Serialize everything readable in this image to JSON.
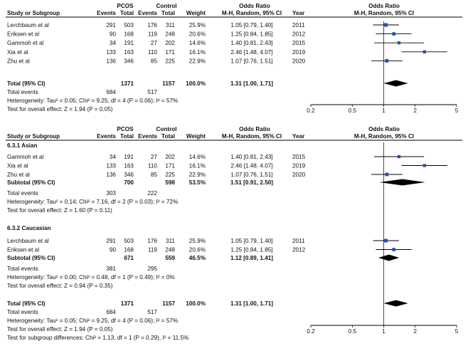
{
  "chart_data": {
    "type": "forest",
    "scale": "log",
    "xlim": [
      0.2,
      5
    ],
    "null_line": 1,
    "ticks": [
      {
        "value": 0.2,
        "label": "0.2"
      },
      {
        "value": 0.5,
        "label": "0.5"
      },
      {
        "value": 1,
        "label": "1"
      },
      {
        "value": 2,
        "label": "2"
      },
      {
        "value": 5,
        "label": "5"
      }
    ],
    "headers": {
      "group_pcos": "PCOS",
      "group_control": "Control",
      "group_or": "Odds Ratio",
      "group_or_plot": "Odds Ratio",
      "study": "Study or Subgroup",
      "events": "Events",
      "total": "Total",
      "events2": "Events",
      "total2": "Total",
      "weight": "Weight",
      "method": "M-H, Random, 95% CI",
      "year": "Year",
      "method_plot": "M-H, Random, 95% CI"
    },
    "panel1": {
      "studies": [
        {
          "name": "Lerchbaum et al",
          "e1": "291",
          "t1": "503",
          "e2": "176",
          "t2": "311",
          "weight": "25.9%",
          "ci": "1.05 [0.79, 1.40]",
          "year": "2011",
          "or": 1.05,
          "lo": 0.79,
          "hi": 1.4,
          "w": 25.9
        },
        {
          "name": "Eriksen et al",
          "e1": "90",
          "t1": "168",
          "e2": "119",
          "t2": "248",
          "weight": "20.6%",
          "ci": "1.25 [0.84, 1.85]",
          "year": "2012",
          "or": 1.25,
          "lo": 0.84,
          "hi": 1.85,
          "w": 20.6
        },
        {
          "name": "Gammoh et al",
          "e1": "34",
          "t1": "191",
          "e2": "27",
          "t2": "202",
          "weight": "14.6%",
          "ci": "1.40 [0.81, 2.43]",
          "year": "2015",
          "or": 1.4,
          "lo": 0.81,
          "hi": 2.43,
          "w": 14.6
        },
        {
          "name": "Xia et al",
          "e1": "133",
          "t1": "163",
          "e2": "110",
          "t2": "171",
          "weight": "16.1%",
          "ci": "2.46 [1.48, 4.07]",
          "year": "2019",
          "or": 2.46,
          "lo": 1.48,
          "hi": 4.07,
          "w": 16.1
        },
        {
          "name": "Zhu et al",
          "e1": "136",
          "t1": "346",
          "e2": "85",
          "t2": "225",
          "weight": "22.9%",
          "ci": "1.07 [0.76, 1.51]",
          "year": "2020",
          "or": 1.07,
          "lo": 0.76,
          "hi": 1.51,
          "w": 22.9
        }
      ],
      "total": {
        "label": "Total (95% CI)",
        "t1": "1371",
        "t2": "1157",
        "weight": "100.0%",
        "ci": "1.31 [1.00, 1.71]",
        "or": 1.31,
        "lo": 1.0,
        "hi": 1.71
      },
      "events": {
        "label": "Total events",
        "e1": "684",
        "e2": "517"
      },
      "heterogeneity": "Heterogeneity: Tau² = 0.05; Chi² = 9.25, df = 4 (P = 0.06); I² = 57%",
      "overall": "Test for overall effect: Z = 1.94 (P = 0.05)"
    },
    "panel2": {
      "subgroups": [
        {
          "title": "6.3.1 Asian",
          "studies": [
            {
              "name": "Gammoh et al",
              "e1": "34",
              "t1": "191",
              "e2": "27",
              "t2": "202",
              "weight": "14.6%",
              "ci": "1.40 [0.81, 2.43]",
              "year": "2015",
              "or": 1.4,
              "lo": 0.81,
              "hi": 2.43,
              "w": 14.6
            },
            {
              "name": "Xia et al",
              "e1": "133",
              "t1": "163",
              "e2": "110",
              "t2": "171",
              "weight": "16.1%",
              "ci": "2.46 [1.48, 4.07]",
              "year": "2019",
              "or": 2.46,
              "lo": 1.48,
              "hi": 4.07,
              "w": 16.1
            },
            {
              "name": "Zhu et al",
              "e1": "136",
              "t1": "346",
              "e2": "85",
              "t2": "225",
              "weight": "22.9%",
              "ci": "1.07 [0.76, 1.51]",
              "year": "2020",
              "or": 1.07,
              "lo": 0.76,
              "hi": 1.51,
              "w": 22.9
            }
          ],
          "subtotal": {
            "label": "Subtotal (95% CI)",
            "t1": "700",
            "t2": "598",
            "weight": "53.5%",
            "ci": "1.51 [0.91, 2.50]",
            "or": 1.51,
            "lo": 0.91,
            "hi": 2.5
          },
          "events": {
            "label": "Total events",
            "e1": "303",
            "e2": "222"
          },
          "heterogeneity": "Heterogeneity: Tau² = 0.14; Chi² = 7.16, df = 2 (P = 0.03); I² = 72%",
          "overall": "Test for overall effect: Z = 1.60 (P = 0.11)"
        },
        {
          "title": "6.3.2 Caucasian",
          "studies": [
            {
              "name": "Lerchbaum et al",
              "e1": "291",
              "t1": "503",
              "e2": "176",
              "t2": "311",
              "weight": "25.9%",
              "ci": "1.05 [0.79, 1.40]",
              "year": "2011",
              "or": 1.05,
              "lo": 0.79,
              "hi": 1.4,
              "w": 25.9
            },
            {
              "name": "Eriksen et al",
              "e1": "90",
              "t1": "168",
              "e2": "119",
              "t2": "248",
              "weight": "20.6%",
              "ci": "1.25 [0.84, 1.85]",
              "year": "2012",
              "or": 1.25,
              "lo": 0.84,
              "hi": 1.85,
              "w": 20.6
            }
          ],
          "subtotal": {
            "label": "Subtotal (95% CI)",
            "t1": "671",
            "t2": "559",
            "weight": "46.5%",
            "ci": "1.12 [0.89, 1.41]",
            "or": 1.12,
            "lo": 0.89,
            "hi": 1.41
          },
          "events": {
            "label": "Total events",
            "e1": "381",
            "e2": "295"
          },
          "heterogeneity": "Heterogeneity: Tau² = 0.00; Chi² = 0.48, df = 1 (P = 0.49); I² = 0%",
          "overall": "Test for overall effect: Z = 0.94 (P = 0.35)"
        }
      ],
      "total": {
        "label": "Total (95% CI)",
        "t1": "1371",
        "t2": "1157",
        "weight": "100.0%",
        "ci": "1.31 [1.00, 1.71]",
        "or": 1.31,
        "lo": 1.0,
        "hi": 1.71
      },
      "events": {
        "label": "Total events",
        "e1": "684",
        "e2": "517"
      },
      "heterogeneity": "Heterogeneity: Tau² = 0.05; Chi² = 9.25, df = 4 (P = 0.06); I² = 57%",
      "overall": "Test for overall effect: Z = 1.94 (P = 0.05)",
      "subgroup_diff": "Test for subgroup differences: Chi² = 1.13, df = 1 (P = 0.29), I² = 11.5%"
    },
    "colors": {
      "square": "#2b4fb0",
      "line": "#000000",
      "diamond": "#000000"
    }
  }
}
